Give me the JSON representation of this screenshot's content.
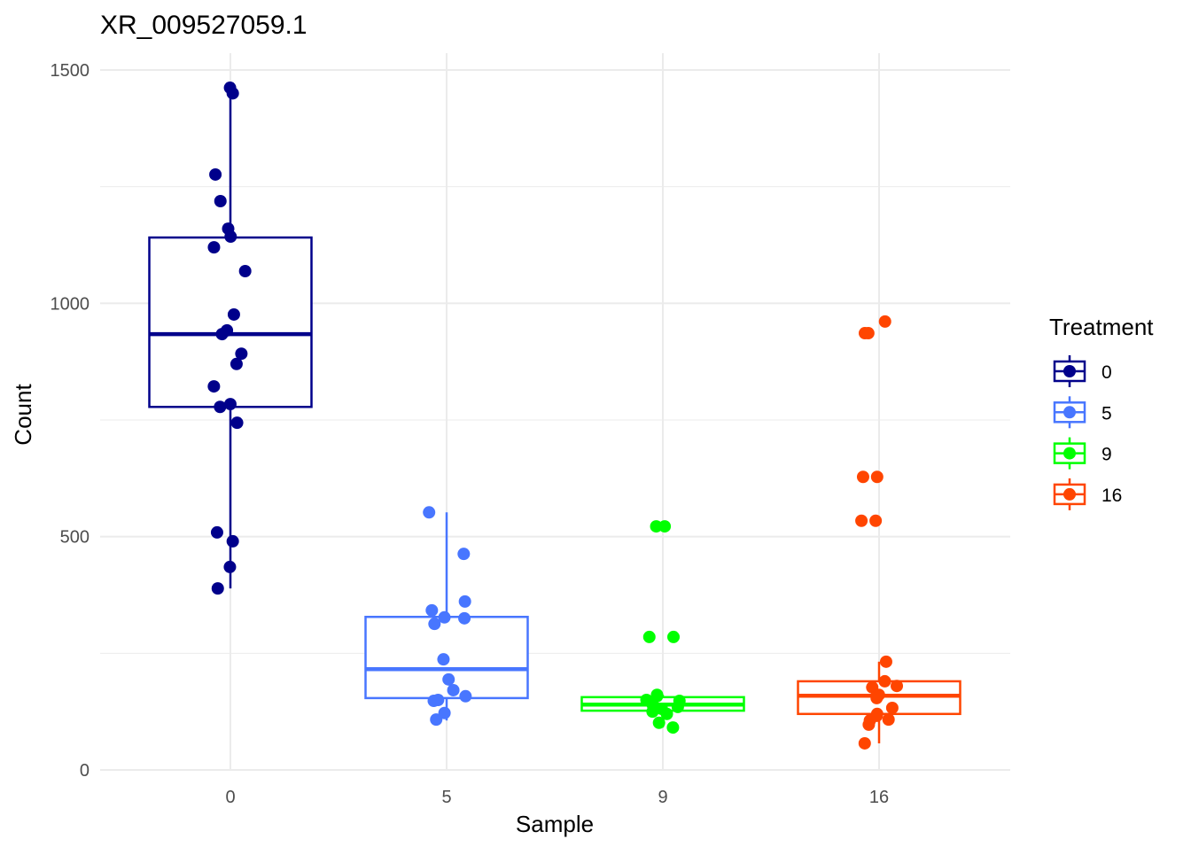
{
  "chart_data": {
    "type": "box",
    "title": "XR_009527059.1",
    "xlabel": "Sample",
    "ylabel": "Count",
    "ylim": [
      0,
      1500
    ],
    "yticks": [
      0,
      500,
      1000,
      1500
    ],
    "categories": [
      "0",
      "5",
      "9",
      "16"
    ],
    "grid": true,
    "legend": {
      "title": "Treatment",
      "placement": "right",
      "entries": [
        "0",
        "5",
        "9",
        "16"
      ]
    },
    "colors": [
      "#00008B",
      "#4876FF",
      "#00FF00",
      "#FF4500"
    ],
    "series": [
      {
        "name": "0",
        "box": {
          "q1": 778,
          "median": 934,
          "q3": 1141,
          "whisker_low": 389,
          "whisker_high": 1460
        },
        "points": [
          1462,
          1450,
          1276,
          1219,
          1160,
          1143,
          1120,
          1069,
          976,
          942,
          934,
          892,
          870,
          822,
          784,
          778,
          744,
          509,
          490,
          435,
          389
        ]
      },
      {
        "name": "5",
        "box": {
          "q1": 154,
          "median": 216,
          "q3": 328,
          "whisker_low": 106,
          "whisker_high": 552
        },
        "points": [
          552,
          463,
          361,
          342,
          327,
          325,
          313,
          237,
          194,
          171,
          150,
          148,
          158,
          122,
          108
        ]
      },
      {
        "name": "9",
        "box": {
          "q1": 127,
          "median": 140,
          "q3": 156,
          "whisker_low": 91,
          "whisker_high": 161
        },
        "points": [
          522,
          522,
          285,
          285,
          161,
          158,
          150,
          148,
          140,
          135,
          131,
          125,
          120,
          101,
          91
        ]
      },
      {
        "name": "16",
        "box": {
          "q1": 120,
          "median": 159,
          "q3": 190,
          "whisker_low": 57,
          "whisker_high": 232
        },
        "points": [
          961,
          936,
          936,
          628,
          628,
          534,
          534,
          232,
          190,
          180,
          177,
          158,
          161,
          154,
          133,
          120,
          116,
          106,
          97,
          108,
          57
        ]
      }
    ]
  }
}
